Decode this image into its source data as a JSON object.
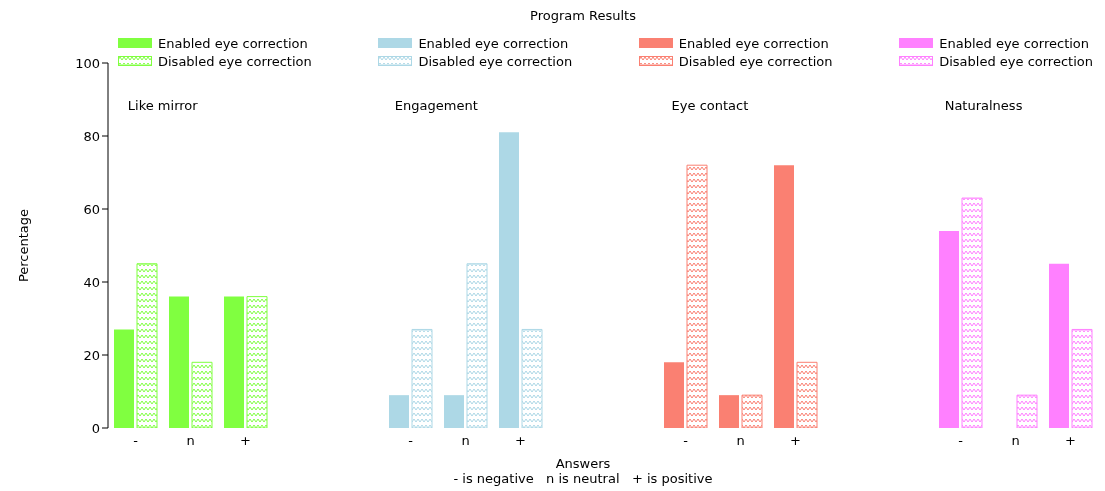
{
  "chart_data": {
    "type": "bar",
    "title": "Program Results",
    "xlabel": "Answers",
    "ylabel": "Percentage",
    "categories": [
      "-",
      "n",
      "+",
      null,
      null,
      "-",
      "n",
      "+",
      null,
      null,
      "-",
      "n",
      "+",
      null,
      null,
      "-",
      "n",
      "+"
    ],
    "series": [
      {
        "name": "Enabled eye correction",
        "color": "#80ff40",
        "values": [
          27,
          36,
          36,
          null,
          null,
          null,
          null,
          null,
          null,
          null,
          null,
          null,
          null,
          null,
          null,
          null,
          null,
          null
        ]
      },
      {
        "name": "Disabled eye correction",
        "color": "#80ff40",
        "values": [
          45,
          18,
          36,
          null,
          null,
          null,
          null,
          null,
          null,
          null,
          null,
          null,
          null,
          null,
          null,
          null,
          null,
          null
        ]
      },
      {
        "name": "Enabled eye correction",
        "color": "#add8e6",
        "values": [
          null,
          null,
          null,
          null,
          null,
          9,
          9,
          81,
          null,
          null,
          null,
          null,
          null,
          null,
          null,
          null,
          null,
          null
        ]
      },
      {
        "name": "Disabled eye correction",
        "color": "#add8e6",
        "values": [
          null,
          null,
          null,
          null,
          null,
          27,
          45,
          27,
          null,
          null,
          null,
          null,
          null,
          null,
          null,
          null,
          null,
          null
        ]
      },
      {
        "name": "Enabled eye correction",
        "color": "#fa8072",
        "values": [
          null,
          null,
          null,
          null,
          null,
          null,
          null,
          null,
          null,
          null,
          18,
          9,
          72,
          null,
          null,
          null,
          null,
          null
        ]
      },
      {
        "name": "Disabled eye correction",
        "color": "#fa8072",
        "values": [
          null,
          null,
          null,
          null,
          null,
          null,
          null,
          null,
          null,
          null,
          72,
          9,
          18,
          null,
          null,
          null,
          null,
          null
        ]
      },
      {
        "name": "Enabled eye correction",
        "color": "#ff80ff",
        "values": [
          null,
          null,
          null,
          null,
          null,
          null,
          null,
          null,
          null,
          null,
          null,
          null,
          null,
          null,
          null,
          54,
          0,
          45
        ]
      },
      {
        "name": "Disabled eye correction",
        "color": "#ff80ff",
        "values": [
          null,
          null,
          null,
          null,
          null,
          null,
          null,
          null,
          null,
          null,
          null,
          null,
          null,
          null,
          null,
          63,
          9,
          27
        ]
      }
    ],
    "ylim": [
      0,
      100
    ],
    "yticks": [
      0,
      20,
      40,
      60,
      80,
      100
    ],
    "grid": false,
    "legend": "top",
    "annotations": [
      "Like mirror",
      "Engagement",
      "Eye contact",
      "Naturalness",
      "- is negative   n is neutral   + is positive"
    ]
  }
}
